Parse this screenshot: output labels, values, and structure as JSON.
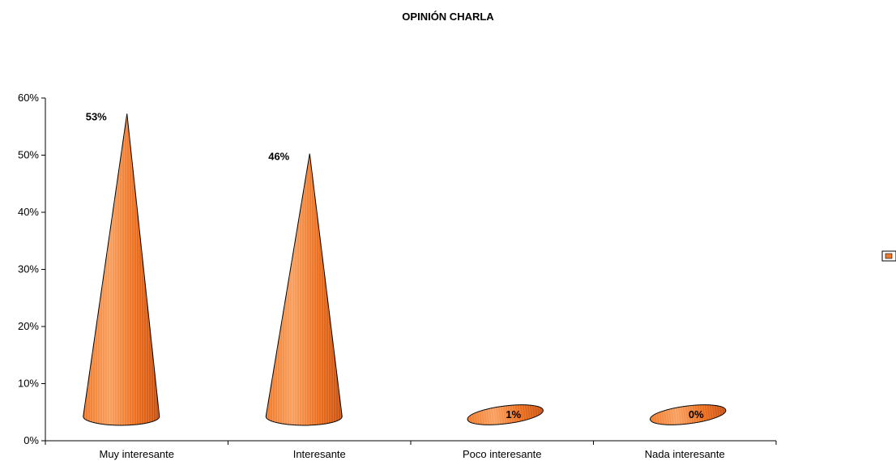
{
  "chart_data": {
    "type": "bar",
    "bar_shape": "cone-3d",
    "title": "OPINIÓN CHARLA",
    "xlabel": "",
    "ylabel": "",
    "categories": [
      "Muy interesante",
      "Interesante",
      "Poco interesante",
      "Nada interesante"
    ],
    "series": [
      {
        "values": [
          53,
          46,
          1,
          0
        ],
        "data_labels": [
          "53%",
          "46%",
          "1%",
          "0%"
        ],
        "color": "#f07a2a"
      }
    ],
    "ylim": [
      0,
      60
    ],
    "y_ticks": [
      0,
      10,
      20,
      30,
      40,
      50,
      60
    ],
    "y_tick_labels": [
      "0%",
      "10%",
      "20%",
      "30%",
      "40%",
      "50%",
      "60%"
    ],
    "grid": false,
    "legend": {
      "placement": "right",
      "entries": [
        ""
      ]
    },
    "colors": {
      "fill": "#f07a2a",
      "fill_dark": "#c85214",
      "fill_light": "#f9a060",
      "stroke": "#000000"
    }
  }
}
